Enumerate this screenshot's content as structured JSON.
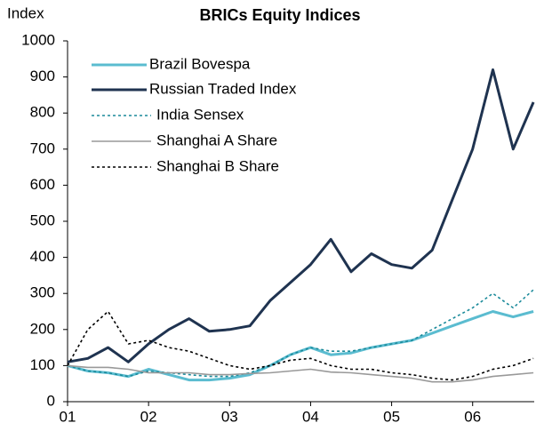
{
  "chart_data": {
    "type": "line",
    "title": "BRICs Equity Indices",
    "y_label": "Index",
    "x": [
      2001.0,
      2001.25,
      2001.5,
      2001.75,
      2002.0,
      2002.25,
      2002.5,
      2002.75,
      2003.0,
      2003.25,
      2003.5,
      2003.75,
      2004.0,
      2004.25,
      2004.5,
      2004.75,
      2005.0,
      2005.25,
      2005.5,
      2005.75,
      2006.0,
      2006.25,
      2006.5,
      2006.75
    ],
    "series": [
      {
        "name": "Brazil Bovespa",
        "color": "#5bbcd0",
        "style": "solid",
        "width": 3,
        "values": [
          100,
          85,
          80,
          70,
          90,
          75,
          60,
          60,
          65,
          75,
          100,
          130,
          150,
          130,
          135,
          150,
          160,
          170,
          190,
          210,
          230,
          250,
          235,
          250
        ]
      },
      {
        "name": "Russian Traded Index",
        "color": "#1f3350",
        "style": "solid",
        "width": 3,
        "values": [
          110,
          120,
          150,
          110,
          160,
          200,
          230,
          195,
          200,
          210,
          280,
          330,
          380,
          450,
          360,
          410,
          380,
          370,
          420,
          560,
          700,
          920,
          700,
          830
        ]
      },
      {
        "name": "India Sensex",
        "color": "#1a8a9a",
        "style": "dotted",
        "width": 1.6,
        "values": [
          100,
          85,
          80,
          70,
          85,
          80,
          75,
          70,
          70,
          80,
          100,
          130,
          150,
          140,
          140,
          150,
          160,
          170,
          200,
          230,
          260,
          300,
          260,
          310
        ]
      },
      {
        "name": "Shanghai A Share",
        "color": "#999999",
        "style": "solid",
        "width": 1.6,
        "values": [
          100,
          95,
          95,
          90,
          80,
          80,
          80,
          75,
          75,
          78,
          80,
          85,
          90,
          82,
          80,
          75,
          70,
          65,
          55,
          55,
          60,
          70,
          75,
          80
        ]
      },
      {
        "name": "Shanghai B Share",
        "color": "#000000",
        "style": "dotted",
        "width": 1.6,
        "values": [
          100,
          200,
          250,
          160,
          170,
          150,
          140,
          120,
          100,
          90,
          100,
          115,
          120,
          100,
          90,
          90,
          80,
          75,
          65,
          60,
          70,
          90,
          100,
          120
        ]
      }
    ],
    "xlim": [
      2001.0,
      2006.76
    ],
    "xticks": [
      {
        "value": 2001,
        "label": "01"
      },
      {
        "value": 2002,
        "label": "02"
      },
      {
        "value": 2003,
        "label": "03"
      },
      {
        "value": 2004,
        "label": "04"
      },
      {
        "value": 2005,
        "label": "05"
      },
      {
        "value": 2006,
        "label": "06"
      }
    ],
    "ylim": [
      0,
      1000
    ],
    "yticks": [
      0,
      100,
      200,
      300,
      400,
      500,
      600,
      700,
      800,
      900,
      1000
    ],
    "grid": false,
    "legend": "upper-left"
  }
}
